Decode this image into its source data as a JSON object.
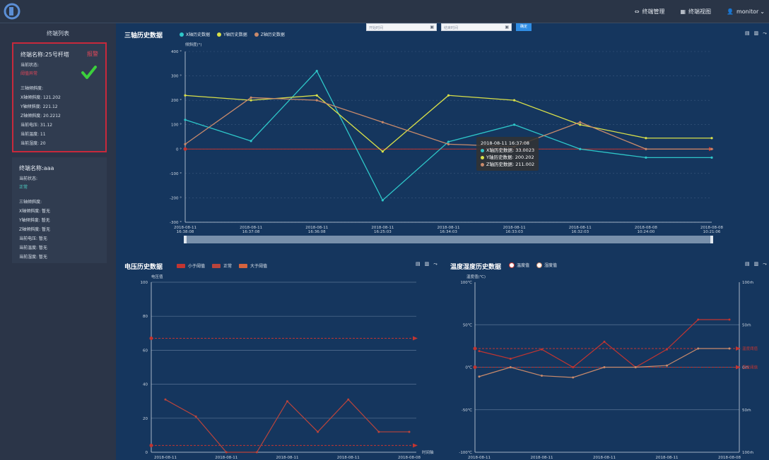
{
  "header": {
    "nav": [
      {
        "icon": "link-icon",
        "label": "终端管理"
      },
      {
        "icon": "grid-icon",
        "label": "终端视图"
      },
      {
        "icon": "user-icon",
        "label": "monitor"
      }
    ]
  },
  "sidebar": {
    "title": "终端列表",
    "cards": [
      {
        "name": "终端名称:25号杆塔",
        "alarm": "报警",
        "status_label": "当前状态:",
        "status_value": "阈值异常",
        "axis_label": "三轴倾斜度:",
        "x": "X轴倾斜度: 121.202",
        "y": "Y轴倾斜度: 221.12",
        "z": "Z轴倾斜度: 20.2212",
        "voltage": "当前电压: 31.12",
        "temperature": "当前温度: 11",
        "humidity": "当前湿度: 20"
      },
      {
        "name": "终端名称:aaa",
        "status_label": "当前状态:",
        "status_value": "正常",
        "axis_label": "三轴倾斜度:",
        "x": "X轴倾斜度: 暂无",
        "y": "Y轴倾斜度: 暂无",
        "z": "Z轴倾斜度: 暂无",
        "voltage": "当前电压: 暂无",
        "temperature": "当前温度: 暂无",
        "humidity": "当前湿度: 暂无"
      }
    ]
  },
  "filters": {
    "start_placeholder": "开始时间",
    "end_placeholder": "结束时间",
    "confirm_label": "确定"
  },
  "colors": {
    "x_series": "#2ec7c9",
    "y_series": "#d9e049",
    "z_series": "#c98a6b",
    "threshold": "#c23531"
  },
  "tilt_chart": {
    "title": "三轴历史数据",
    "legend": [
      "X轴历史数据",
      "Y轴历史数据",
      "Z轴历史数据"
    ],
    "tooltip": {
      "time": "2018-08-11 16:37:08",
      "rows": [
        "X轴历史数据: 33.0023",
        "Y轴历史数据: 200.202",
        "Z轴历史数据: 211.002"
      ]
    },
    "chart_data": {
      "type": "line",
      "ylabel": "倾斜度(°)",
      "ylim": [
        -300,
        400
      ],
      "yticks": [
        "400 °",
        "300 °",
        "200 °",
        "100 °",
        "0 °",
        "-100 °",
        "-200 °",
        "-300 °"
      ],
      "categories": [
        [
          "2018-08-11",
          "16:38:08"
        ],
        [
          "2018-08-11",
          "16:37:08"
        ],
        [
          "2018-08-11",
          "16:36:08"
        ],
        [
          "2018-08-11",
          "16:25:03"
        ],
        [
          "2018-08-11",
          "16:34:03"
        ],
        [
          "2018-08-11",
          "16:33:03"
        ],
        [
          "2018-08-11",
          "16:32:03"
        ],
        [
          "2018-08-08",
          "10:24:00"
        ],
        [
          "2018-08-08",
          "10:21:06"
        ]
      ],
      "series": [
        {
          "name": "X轴历史数据",
          "values": [
            120,
            33,
            320,
            -210,
            30,
            100,
            0,
            -35,
            -35
          ]
        },
        {
          "name": "Y轴历史数据",
          "values": [
            220,
            200,
            220,
            -10,
            220,
            200,
            100,
            45,
            45
          ]
        },
        {
          "name": "Z轴历史数据",
          "values": [
            20,
            211,
            200,
            110,
            20,
            10,
            110,
            0,
            0
          ]
        }
      ],
      "threshold": 0
    }
  },
  "voltage_chart": {
    "title": "电压历史数据",
    "legend": [
      "小于阈值",
      "正常",
      "大于阈值"
    ],
    "chart_data": {
      "type": "line",
      "ylabel": "电压值",
      "xlabel": "时间轴",
      "ylim": [
        0,
        100
      ],
      "yticks": [
        "100",
        "80",
        "60",
        "40",
        "20",
        "0"
      ],
      "categories": [
        "2018-08-11",
        "",
        "2018-08-11",
        "",
        "2018-08-11",
        "",
        "2018-08-11",
        "",
        "2018-08-08"
      ],
      "values": [
        31,
        21,
        0,
        0,
        30,
        12,
        31,
        12,
        12
      ],
      "thresholds": [
        67,
        4
      ]
    }
  },
  "env_chart": {
    "title": "温度湿度历史数据",
    "legend": [
      "温度值",
      "湿度值"
    ],
    "chart_data": {
      "type": "line",
      "ylabel": "温度值(℃)",
      "ylim": [
        -100,
        100
      ],
      "yticks": [
        "100℃",
        "50℃",
        "0℃",
        "-50℃",
        "-100℃"
      ],
      "y2ticks": [
        "100rh",
        "50rh",
        "0rh",
        "50rh",
        "100rh"
      ],
      "categories": [
        "2018-08-11",
        "",
        "2018-08-11",
        "",
        "2018-08-11",
        "",
        "2018-08-11",
        "",
        "2018-08-08"
      ],
      "series": [
        {
          "name": "温度值",
          "values": [
            19,
            10,
            21,
            0,
            30,
            0,
            21,
            56,
            56
          ]
        },
        {
          "name": "湿度值",
          "values": [
            -11,
            0,
            -10,
            -12,
            0,
            0,
            2,
            22,
            22
          ]
        }
      ],
      "thresholds": [
        22,
        0
      ],
      "threshold_labels": [
        "温度阈值",
        "湿度阈值"
      ]
    }
  }
}
